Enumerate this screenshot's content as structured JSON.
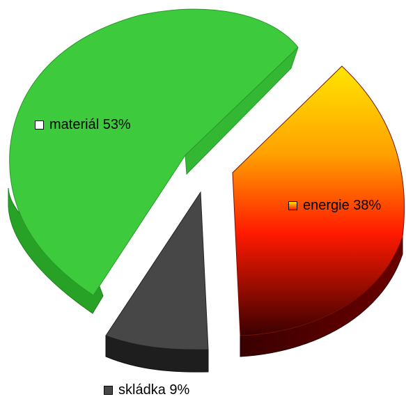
{
  "chart_data": {
    "type": "pie",
    "style": "3d-exploded",
    "slices": [
      {
        "label": "materiál",
        "value": 53,
        "display": "materiál 53%",
        "color": "#3dcb3d",
        "side_color": "#27a227"
      },
      {
        "label": "energie",
        "value": 38,
        "display": "energie 38%",
        "color_top": "#ffe600",
        "color_mid": "#ff1a00",
        "color_bottom": "#3a0000",
        "side_color": "#5a0000"
      },
      {
        "label": "skládka",
        "value": 9,
        "display": "skládka 9%",
        "color": "#474747",
        "side_color": "#1e1e1e"
      }
    ],
    "legend": "labels-on-slices"
  }
}
